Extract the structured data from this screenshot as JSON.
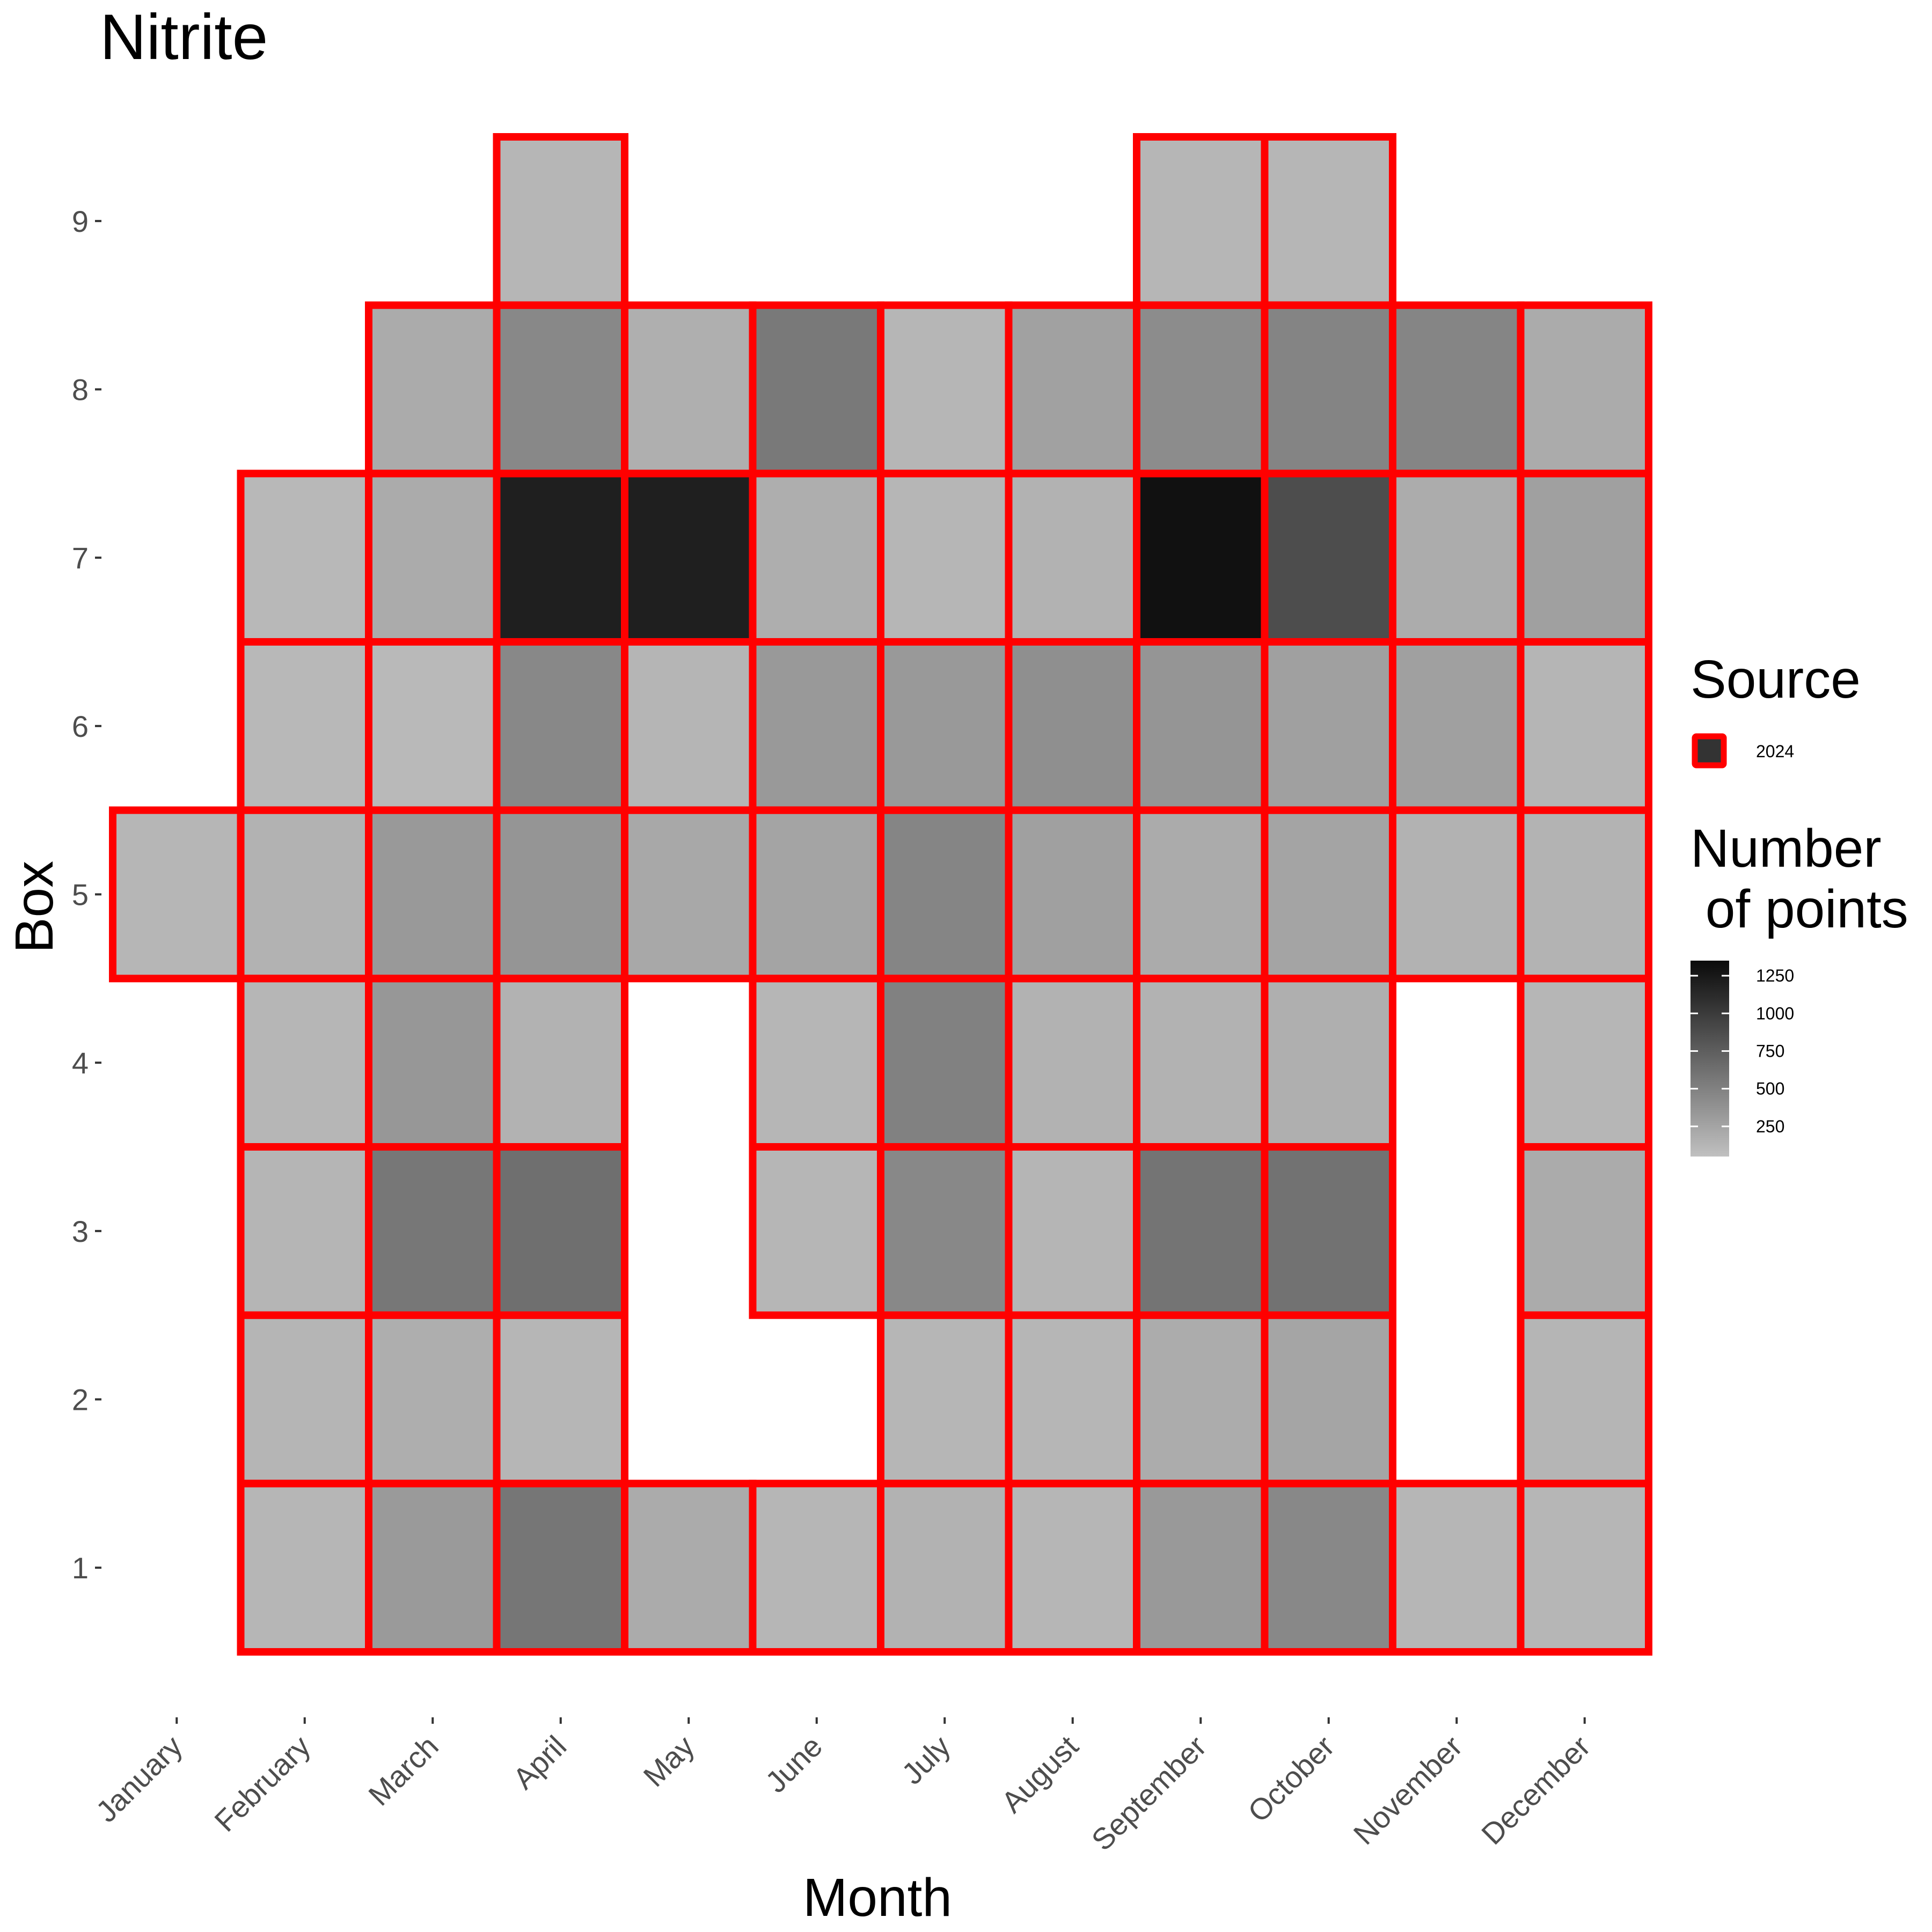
{
  "chart_data": {
    "type": "heatmap",
    "title": "Nitrite",
    "xlabel": "Month",
    "ylabel": "Box",
    "x_categories": [
      "January",
      "February",
      "March",
      "April",
      "May",
      "June",
      "July",
      "August",
      "September",
      "October",
      "November",
      "December"
    ],
    "y_categories": [
      "1",
      "2",
      "3",
      "4",
      "5",
      "6",
      "7",
      "8",
      "9"
    ],
    "cells": [
      {
        "month": "January",
        "box": 5,
        "value": 120
      },
      {
        "month": "February",
        "box": 1,
        "value": 120
      },
      {
        "month": "February",
        "box": 2,
        "value": 130
      },
      {
        "month": "February",
        "box": 3,
        "value": 130
      },
      {
        "month": "February",
        "box": 4,
        "value": 120
      },
      {
        "month": "February",
        "box": 5,
        "value": 150
      },
      {
        "month": "February",
        "box": 6,
        "value": 110
      },
      {
        "month": "February",
        "box": 7,
        "value": 110
      },
      {
        "month": "March",
        "box": 1,
        "value": 320
      },
      {
        "month": "March",
        "box": 2,
        "value": 180
      },
      {
        "month": "March",
        "box": 3,
        "value": 570
      },
      {
        "month": "March",
        "box": 4,
        "value": 340
      },
      {
        "month": "March",
        "box": 5,
        "value": 330
      },
      {
        "month": "March",
        "box": 6,
        "value": 100
      },
      {
        "month": "March",
        "box": 7,
        "value": 200
      },
      {
        "month": "March",
        "box": 8,
        "value": 200
      },
      {
        "month": "April",
        "box": 1,
        "value": 580
      },
      {
        "month": "April",
        "box": 2,
        "value": 120
      },
      {
        "month": "April",
        "box": 3,
        "value": 630
      },
      {
        "month": "April",
        "box": 4,
        "value": 150
      },
      {
        "month": "April",
        "box": 5,
        "value": 360
      },
      {
        "month": "April",
        "box": 6,
        "value": 450
      },
      {
        "month": "April",
        "box": 7,
        "value": 1200
      },
      {
        "month": "April",
        "box": 8,
        "value": 450
      },
      {
        "month": "April",
        "box": 9,
        "value": 120
      },
      {
        "month": "May",
        "box": 1,
        "value": 200
      },
      {
        "month": "May",
        "box": 5,
        "value": 220
      },
      {
        "month": "May",
        "box": 6,
        "value": 130
      },
      {
        "month": "May",
        "box": 7,
        "value": 1200
      },
      {
        "month": "May",
        "box": 8,
        "value": 170
      },
      {
        "month": "June",
        "box": 1,
        "value": 120
      },
      {
        "month": "June",
        "box": 3,
        "value": 120
      },
      {
        "month": "June",
        "box": 4,
        "value": 120
      },
      {
        "month": "June",
        "box": 5,
        "value": 250
      },
      {
        "month": "June",
        "box": 6,
        "value": 330
      },
      {
        "month": "June",
        "box": 7,
        "value": 180
      },
      {
        "month": "June",
        "box": 8,
        "value": 560
      },
      {
        "month": "July",
        "box": 1,
        "value": 150
      },
      {
        "month": "July",
        "box": 2,
        "value": 120
      },
      {
        "month": "July",
        "box": 3,
        "value": 450
      },
      {
        "month": "July",
        "box": 4,
        "value": 500
      },
      {
        "month": "July",
        "box": 5,
        "value": 470
      },
      {
        "month": "July",
        "box": 6,
        "value": 330
      },
      {
        "month": "July",
        "box": 7,
        "value": 120
      },
      {
        "month": "July",
        "box": 8,
        "value": 120
      },
      {
        "month": "August",
        "box": 1,
        "value": 120
      },
      {
        "month": "August",
        "box": 2,
        "value": 120
      },
      {
        "month": "August",
        "box": 3,
        "value": 130
      },
      {
        "month": "August",
        "box": 4,
        "value": 150
      },
      {
        "month": "August",
        "box": 5,
        "value": 280
      },
      {
        "month": "August",
        "box": 6,
        "value": 400
      },
      {
        "month": "August",
        "box": 7,
        "value": 150
      },
      {
        "month": "August",
        "box": 8,
        "value": 270
      },
      {
        "month": "September",
        "box": 1,
        "value": 330
      },
      {
        "month": "September",
        "box": 2,
        "value": 190
      },
      {
        "month": "September",
        "box": 3,
        "value": 590
      },
      {
        "month": "September",
        "box": 4,
        "value": 150
      },
      {
        "month": "September",
        "box": 5,
        "value": 200
      },
      {
        "month": "September",
        "box": 6,
        "value": 360
      },
      {
        "month": "September",
        "box": 7,
        "value": 1300
      },
      {
        "month": "September",
        "box": 8,
        "value": 420
      },
      {
        "month": "September",
        "box": 9,
        "value": 120
      },
      {
        "month": "October",
        "box": 1,
        "value": 450
      },
      {
        "month": "October",
        "box": 2,
        "value": 240
      },
      {
        "month": "October",
        "box": 3,
        "value": 610
      },
      {
        "month": "October",
        "box": 4,
        "value": 170
      },
      {
        "month": "October",
        "box": 5,
        "value": 250
      },
      {
        "month": "October",
        "box": 6,
        "value": 280
      },
      {
        "month": "October",
        "box": 7,
        "value": 870
      },
      {
        "month": "October",
        "box": 8,
        "value": 480
      },
      {
        "month": "October",
        "box": 9,
        "value": 120
      },
      {
        "month": "November",
        "box": 1,
        "value": 120
      },
      {
        "month": "November",
        "box": 5,
        "value": 150
      },
      {
        "month": "November",
        "box": 6,
        "value": 280
      },
      {
        "month": "November",
        "box": 7,
        "value": 190
      },
      {
        "month": "November",
        "box": 8,
        "value": 470
      },
      {
        "month": "December",
        "box": 1,
        "value": 120
      },
      {
        "month": "December",
        "box": 2,
        "value": 130
      },
      {
        "month": "December",
        "box": 3,
        "value": 200
      },
      {
        "month": "December",
        "box": 4,
        "value": 120
      },
      {
        "month": "December",
        "box": 5,
        "value": 140
      },
      {
        "month": "December",
        "box": 6,
        "value": 130
      },
      {
        "month": "December",
        "box": 7,
        "value": 280
      },
      {
        "month": "December",
        "box": 8,
        "value": 200
      }
    ],
    "color_scale": {
      "low_color": "#c0c0c0",
      "high_color": "#0a0a0a",
      "min": 50,
      "max": 1350
    },
    "cell_outline_color": "#ff0000",
    "legend": {
      "source_title": "Source",
      "source_items": [
        {
          "label": "2024",
          "fill": "#333333",
          "outline": "#ff0000"
        }
      ],
      "count_title_line1": "Number",
      "count_title_line2": " of points",
      "count_breaks": [
        1250,
        1000,
        750,
        500,
        250
      ]
    },
    "grid": false,
    "legend_position": "right"
  }
}
